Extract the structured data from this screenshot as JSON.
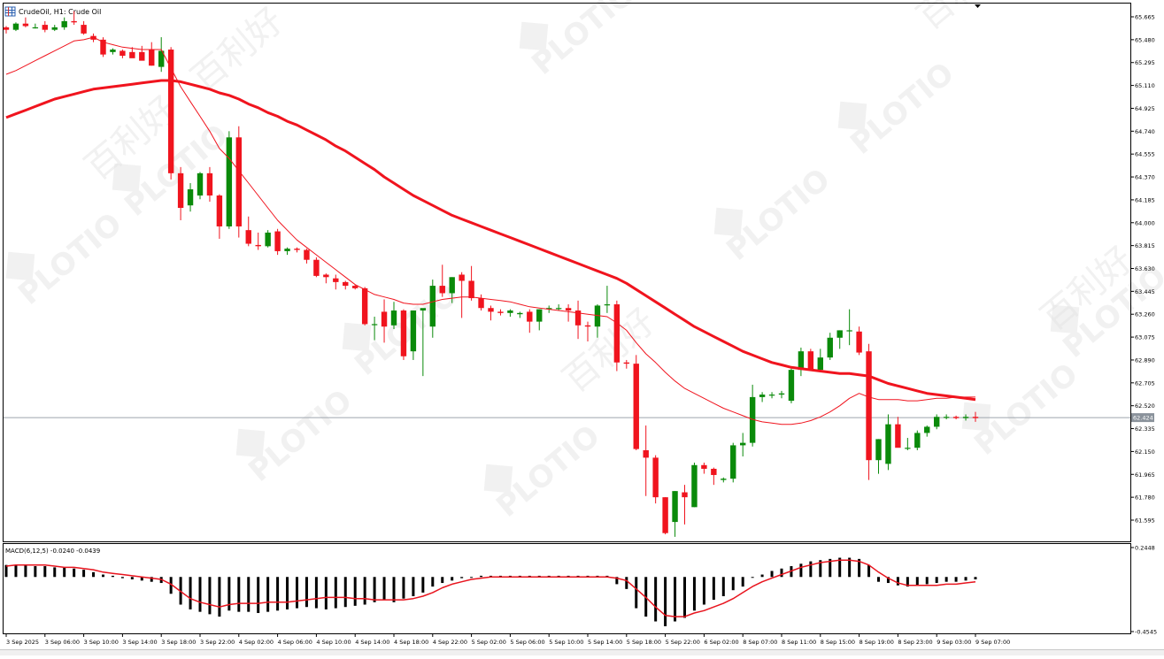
{
  "header": {
    "symbol_line": "CrudeOil, H1:  Crude Oil",
    "icon": "chart-grid-icon"
  },
  "watermark": {
    "brand": "PLOTIO",
    "cn": "百利好"
  },
  "colors": {
    "bull": "#0a8a0a",
    "bear": "#f0141e",
    "ma_slow": "#f0141e",
    "ma_fast": "#f0141e",
    "macd_hist": "#000000",
    "macd_signal": "#e8141e",
    "price_line": "#9ea5ad",
    "price_tag_bg": "#8a929b",
    "axis": "#000000",
    "watermark": "#e6e6e6"
  },
  "chart_data": [
    {
      "type": "candlestick",
      "title": "CrudeOil, H1:  Crude Oil",
      "y_ticks": [
        "65.665",
        "65.480",
        "65.295",
        "65.110",
        "64.925",
        "64.740",
        "64.555",
        "64.370",
        "64.185",
        "64.000",
        "63.815",
        "63.630",
        "63.445",
        "63.260",
        "63.075",
        "62.890",
        "62.705",
        "62.520",
        "62.335",
        "62.150",
        "61.965",
        "61.780",
        "61.595"
      ],
      "ylim": [
        61.43,
        65.71
      ],
      "current_price": "62.424",
      "current_price_value": 62.424,
      "candles": [
        [
          65.58,
          65.59,
          65.53,
          65.56
        ],
        [
          65.56,
          65.62,
          65.55,
          65.61
        ],
        [
          65.61,
          65.66,
          65.58,
          65.59
        ],
        [
          65.58,
          65.61,
          65.57,
          65.58
        ],
        [
          65.6,
          65.63,
          65.54,
          65.56
        ],
        [
          65.56,
          65.6,
          65.55,
          65.58
        ],
        [
          65.58,
          65.66,
          65.56,
          65.63
        ],
        [
          65.63,
          65.71,
          65.6,
          65.62
        ],
        [
          65.6,
          65.63,
          65.52,
          65.53
        ],
        [
          65.51,
          65.53,
          65.46,
          65.48
        ],
        [
          65.48,
          65.5,
          65.34,
          65.36
        ],
        [
          65.38,
          65.41,
          65.36,
          65.4
        ],
        [
          65.39,
          65.4,
          65.33,
          65.35
        ],
        [
          65.38,
          65.42,
          65.34,
          65.33
        ],
        [
          65.38,
          65.43,
          65.34,
          65.31
        ],
        [
          65.4,
          65.46,
          65.27,
          65.27
        ],
        [
          65.26,
          65.5,
          65.22,
          65.39
        ],
        [
          65.4,
          65.42,
          64.35,
          64.4
        ],
        [
          64.4,
          64.45,
          64.02,
          64.12
        ],
        [
          64.14,
          64.32,
          64.09,
          64.27
        ],
        [
          64.22,
          64.41,
          64.19,
          64.4
        ],
        [
          64.4,
          64.45,
          64.17,
          64.22
        ],
        [
          64.22,
          64.23,
          63.87,
          63.97
        ],
        [
          63.97,
          64.74,
          63.95,
          64.69
        ],
        [
          64.69,
          64.78,
          63.88,
          63.97
        ],
        [
          63.94,
          64.05,
          63.81,
          63.83
        ],
        [
          63.82,
          63.92,
          63.78,
          63.81
        ],
        [
          63.81,
          63.94,
          63.8,
          63.92
        ],
        [
          63.93,
          63.95,
          63.74,
          63.77
        ],
        [
          63.77,
          63.8,
          63.74,
          63.79
        ],
        [
          63.79,
          63.8,
          63.76,
          63.78
        ],
        [
          63.78,
          63.79,
          63.67,
          63.7
        ],
        [
          63.7,
          63.72,
          63.56,
          63.57
        ],
        [
          63.58,
          63.59,
          63.51,
          63.56
        ],
        [
          63.55,
          63.58,
          63.46,
          63.52
        ],
        [
          63.52,
          63.53,
          63.46,
          63.49
        ],
        [
          63.49,
          63.5,
          63.46,
          63.47
        ],
        [
          63.47,
          63.48,
          63.17,
          63.18
        ],
        [
          63.18,
          63.24,
          63.05,
          63.18
        ],
        [
          63.28,
          63.38,
          63.03,
          63.16
        ],
        [
          63.17,
          63.36,
          63.14,
          63.29
        ],
        [
          63.29,
          63.3,
          62.89,
          62.92
        ],
        [
          62.96,
          63.29,
          62.89,
          63.29
        ],
        [
          63.29,
          63.3,
          62.76,
          63.31
        ],
        [
          63.16,
          63.54,
          63.07,
          63.49
        ],
        [
          63.49,
          63.66,
          63.4,
          63.43
        ],
        [
          63.43,
          63.56,
          63.35,
          63.56
        ],
        [
          63.58,
          63.6,
          63.23,
          63.53
        ],
        [
          63.53,
          63.65,
          63.37,
          63.39
        ],
        [
          63.39,
          63.42,
          63.29,
          63.31
        ],
        [
          63.31,
          63.33,
          63.21,
          63.28
        ],
        [
          63.28,
          63.3,
          63.25,
          63.27
        ],
        [
          63.27,
          63.3,
          63.24,
          63.29
        ],
        [
          63.26,
          63.28,
          63.23,
          63.27
        ],
        [
          63.28,
          63.3,
          63.11,
          63.2
        ],
        [
          63.2,
          63.3,
          63.13,
          63.3
        ],
        [
          63.3,
          63.33,
          63.27,
          63.31
        ],
        [
          63.31,
          63.34,
          63.29,
          63.31
        ],
        [
          63.31,
          63.34,
          63.2,
          63.29
        ],
        [
          63.29,
          63.37,
          63.06,
          63.17
        ],
        [
          63.17,
          63.2,
          63.04,
          63.16
        ],
        [
          63.16,
          63.34,
          63.07,
          63.33
        ],
        [
          63.34,
          63.49,
          63.27,
          63.34
        ],
        [
          63.34,
          63.37,
          62.8,
          62.87
        ],
        [
          62.87,
          62.89,
          62.82,
          62.86
        ],
        [
          62.86,
          62.93,
          62.16,
          62.17
        ],
        [
          62.16,
          62.36,
          61.79,
          62.1
        ],
        [
          62.1,
          62.12,
          61.73,
          61.78
        ],
        [
          61.78,
          61.78,
          61.48,
          61.49
        ],
        [
          61.58,
          61.83,
          61.46,
          61.83
        ],
        [
          61.82,
          61.88,
          61.56,
          61.78
        ],
        [
          61.7,
          62.06,
          61.7,
          62.04
        ],
        [
          62.04,
          62.06,
          61.97,
          62.01
        ],
        [
          62.01,
          62.02,
          61.88,
          61.96
        ],
        [
          61.92,
          61.94,
          61.9,
          61.93
        ],
        [
          61.93,
          62.22,
          61.9,
          62.2
        ],
        [
          62.2,
          62.3,
          62.11,
          62.22
        ],
        [
          62.22,
          62.69,
          62.19,
          62.59
        ],
        [
          62.59,
          62.63,
          62.55,
          62.61
        ],
        [
          62.61,
          62.63,
          62.58,
          62.61
        ],
        [
          62.61,
          62.64,
          62.58,
          62.62
        ],
        [
          62.56,
          62.82,
          62.54,
          62.81
        ],
        [
          62.81,
          62.99,
          62.76,
          62.96
        ],
        [
          62.96,
          62.98,
          62.81,
          62.81
        ],
        [
          62.81,
          62.98,
          62.79,
          62.91
        ],
        [
          62.91,
          63.11,
          62.89,
          63.07
        ],
        [
          63.07,
          63.13,
          62.98,
          63.13
        ],
        [
          63.13,
          63.3,
          63.01,
          63.13
        ],
        [
          63.12,
          63.16,
          62.93,
          62.95
        ],
        [
          62.96,
          63.02,
          61.92,
          62.08
        ],
        [
          62.08,
          62.25,
          61.97,
          62.25
        ],
        [
          62.05,
          62.45,
          62.0,
          62.37
        ],
        [
          62.37,
          62.43,
          62.2,
          62.18
        ],
        [
          62.18,
          62.26,
          62.16,
          62.18
        ],
        [
          62.18,
          62.32,
          62.16,
          62.3
        ],
        [
          62.3,
          62.36,
          62.27,
          62.35
        ],
        [
          62.35,
          62.45,
          62.33,
          62.43
        ],
        [
          62.43,
          62.45,
          62.41,
          62.43
        ],
        [
          62.43,
          62.44,
          62.41,
          62.42
        ],
        [
          62.42,
          62.45,
          62.4,
          62.43
        ],
        [
          62.43,
          62.47,
          62.39,
          62.42
        ]
      ],
      "ma_fast": [
        65.2,
        65.23,
        65.27,
        65.31,
        65.35,
        65.39,
        65.43,
        65.47,
        65.48,
        65.5,
        65.46,
        65.44,
        65.42,
        65.41,
        65.4,
        65.4,
        65.4,
        65.25,
        65.1,
        64.98,
        64.86,
        64.74,
        64.6,
        64.52,
        64.42,
        64.32,
        64.22,
        64.12,
        64.02,
        63.94,
        63.86,
        63.8,
        63.74,
        63.68,
        63.62,
        63.56,
        63.5,
        63.46,
        63.42,
        63.4,
        63.38,
        63.35,
        63.34,
        63.34,
        63.36,
        63.38,
        63.39,
        63.4,
        63.4,
        63.39,
        63.38,
        63.37,
        63.36,
        63.34,
        63.32,
        63.31,
        63.3,
        63.29,
        63.28,
        63.27,
        63.26,
        63.25,
        63.24,
        63.19,
        63.13,
        63.03,
        62.94,
        62.87,
        62.79,
        62.72,
        62.66,
        62.62,
        62.58,
        62.54,
        62.5,
        62.47,
        62.44,
        62.41,
        62.39,
        62.38,
        62.37,
        62.37,
        62.38,
        62.4,
        62.43,
        62.47,
        62.52,
        62.58,
        62.62,
        62.59,
        62.57,
        62.57,
        62.57,
        62.56,
        62.56,
        62.57,
        62.58,
        62.58,
        62.59,
        62.59,
        62.59
      ],
      "ma_slow": [
        64.85,
        64.88,
        64.91,
        64.94,
        64.97,
        65.0,
        65.02,
        65.04,
        65.06,
        65.08,
        65.09,
        65.1,
        65.11,
        65.12,
        65.13,
        65.14,
        65.15,
        65.15,
        65.14,
        65.12,
        65.1,
        65.08,
        65.05,
        65.03,
        65.0,
        64.96,
        64.93,
        64.89,
        64.86,
        64.82,
        64.79,
        64.75,
        64.71,
        64.67,
        64.62,
        64.58,
        64.53,
        64.48,
        64.43,
        64.37,
        64.32,
        64.27,
        64.22,
        64.18,
        64.14,
        64.1,
        64.06,
        64.03,
        64.0,
        63.97,
        63.94,
        63.91,
        63.88,
        63.85,
        63.82,
        63.79,
        63.76,
        63.73,
        63.7,
        63.67,
        63.64,
        63.61,
        63.58,
        63.55,
        63.51,
        63.46,
        63.41,
        63.36,
        63.31,
        63.26,
        63.21,
        63.16,
        63.12,
        63.08,
        63.04,
        63.0,
        62.96,
        62.93,
        62.9,
        62.87,
        62.85,
        62.83,
        62.82,
        62.81,
        62.8,
        62.79,
        62.78,
        62.78,
        62.77,
        62.76,
        62.73,
        62.7,
        62.68,
        62.66,
        62.64,
        62.62,
        62.61,
        62.6,
        62.59,
        62.58,
        62.57
      ]
    },
    {
      "type": "histogram+line",
      "label": "MACD(6,12,5) -0.0240 -0.0439",
      "y_ticks": [
        "0.2448",
        "-0.4545"
      ],
      "ylim": [
        -0.4545,
        0.2448
      ],
      "histogram": [
        0.1,
        0.1,
        0.1,
        0.09,
        0.09,
        0.08,
        0.08,
        0.07,
        0.06,
        0.04,
        0.02,
        0.01,
        -0.01,
        -0.02,
        -0.03,
        -0.04,
        -0.05,
        -0.14,
        -0.23,
        -0.27,
        -0.29,
        -0.31,
        -0.33,
        -0.28,
        -0.29,
        -0.29,
        -0.3,
        -0.29,
        -0.28,
        -0.27,
        -0.26,
        -0.25,
        -0.26,
        -0.27,
        -0.26,
        -0.25,
        -0.24,
        -0.23,
        -0.21,
        -0.19,
        -0.21,
        -0.18,
        -0.16,
        -0.13,
        -0.08,
        -0.05,
        -0.03,
        -0.01,
        0.0,
        0.01,
        0.01,
        0.01,
        0.01,
        0.01,
        0.01,
        0.01,
        0.01,
        0.01,
        0.01,
        0.01,
        0.01,
        0.01,
        0.01,
        -0.06,
        -0.1,
        -0.26,
        -0.33,
        -0.37,
        -0.41,
        -0.37,
        -0.34,
        -0.28,
        -0.23,
        -0.19,
        -0.16,
        -0.11,
        -0.08,
        0.0,
        0.02,
        0.05,
        0.07,
        0.09,
        0.11,
        0.13,
        0.14,
        0.15,
        0.16,
        0.16,
        0.15,
        0.1,
        -0.04,
        -0.05,
        -0.07,
        -0.08,
        -0.07,
        -0.06,
        -0.05,
        -0.04,
        -0.04,
        -0.03,
        -0.02
      ],
      "signal": [
        0.09,
        0.1,
        0.1,
        0.1,
        0.1,
        0.09,
        0.08,
        0.08,
        0.07,
        0.06,
        0.04,
        0.03,
        0.02,
        0.01,
        0.0,
        -0.01,
        -0.02,
        -0.06,
        -0.12,
        -0.18,
        -0.21,
        -0.23,
        -0.25,
        -0.23,
        -0.22,
        -0.22,
        -0.22,
        -0.21,
        -0.21,
        -0.21,
        -0.2,
        -0.19,
        -0.18,
        -0.17,
        -0.17,
        -0.17,
        -0.18,
        -0.18,
        -0.19,
        -0.19,
        -0.19,
        -0.19,
        -0.18,
        -0.16,
        -0.13,
        -0.09,
        -0.06,
        -0.04,
        -0.02,
        -0.01,
        0.0,
        0.0,
        0.0,
        0.0,
        0.0,
        0.0,
        0.0,
        0.0,
        0.0,
        0.0,
        0.0,
        0.0,
        0.0,
        -0.01,
        -0.03,
        -0.1,
        -0.17,
        -0.25,
        -0.32,
        -0.33,
        -0.33,
        -0.3,
        -0.28,
        -0.25,
        -0.22,
        -0.18,
        -0.13,
        -0.08,
        -0.04,
        -0.01,
        0.02,
        0.05,
        0.08,
        0.1,
        0.12,
        0.13,
        0.14,
        0.14,
        0.13,
        0.1,
        0.04,
        -0.01,
        -0.05,
        -0.07,
        -0.07,
        -0.07,
        -0.07,
        -0.06,
        -0.06,
        -0.05,
        -0.04
      ]
    }
  ],
  "x_axis": {
    "labels": [
      {
        "text": "3 Sep 2025",
        "i": 0
      },
      {
        "text": "3 Sep 06:00",
        "i": 4
      },
      {
        "text": "3 Sep 10:00",
        "i": 8
      },
      {
        "text": "3 Sep 14:00",
        "i": 12
      },
      {
        "text": "3 Sep 18:00",
        "i": 16
      },
      {
        "text": "3 Sep 22:00",
        "i": 20
      },
      {
        "text": "4 Sep 02:00",
        "i": 24
      },
      {
        "text": "4 Sep 06:00",
        "i": 28
      },
      {
        "text": "4 Sep 10:00",
        "i": 32
      },
      {
        "text": "4 Sep 14:00",
        "i": 36
      },
      {
        "text": "4 Sep 18:00",
        "i": 40
      },
      {
        "text": "4 Sep 22:00",
        "i": 44
      },
      {
        "text": "5 Sep 02:00",
        "i": 48
      },
      {
        "text": "5 Sep 06:00",
        "i": 52
      },
      {
        "text": "5 Sep 10:00",
        "i": 56
      },
      {
        "text": "5 Sep 14:00",
        "i": 60
      },
      {
        "text": "5 Sep 18:00",
        "i": 64
      },
      {
        "text": "5 Sep 22:00",
        "i": 68
      },
      {
        "text": "6 Sep 02:00",
        "i": 72
      },
      {
        "text": "8 Sep 07:00",
        "i": 76
      },
      {
        "text": "8 Sep 11:00",
        "i": 80
      },
      {
        "text": "8 Sep 15:00",
        "i": 84
      },
      {
        "text": "8 Sep 19:00",
        "i": 88
      },
      {
        "text": "8 Sep 23:00",
        "i": 92
      },
      {
        "text": "9 Sep 03:00",
        "i": 96
      },
      {
        "text": "9 Sep 07:00",
        "i": 100
      }
    ]
  }
}
